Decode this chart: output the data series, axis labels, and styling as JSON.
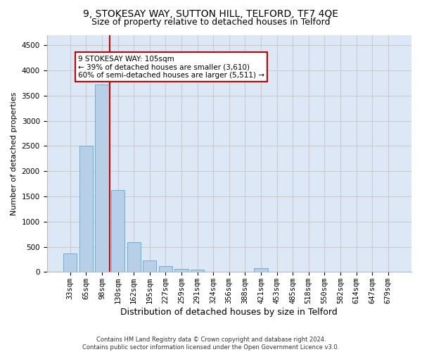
{
  "title1": "9, STOKESAY WAY, SUTTON HILL, TELFORD, TF7 4QE",
  "title2": "Size of property relative to detached houses in Telford",
  "xlabel": "Distribution of detached houses by size in Telford",
  "ylabel": "Number of detached properties",
  "footnote": "Contains HM Land Registry data © Crown copyright and database right 2024.\nContains public sector information licensed under the Open Government Licence v3.0.",
  "categories": [
    "33sqm",
    "65sqm",
    "98sqm",
    "130sqm",
    "162sqm",
    "195sqm",
    "227sqm",
    "259sqm",
    "291sqm",
    "324sqm",
    "356sqm",
    "388sqm",
    "421sqm",
    "453sqm",
    "485sqm",
    "518sqm",
    "550sqm",
    "582sqm",
    "614sqm",
    "647sqm",
    "679sqm"
  ],
  "values": [
    370,
    2500,
    3720,
    1630,
    590,
    225,
    110,
    65,
    45,
    0,
    0,
    0,
    80,
    0,
    0,
    0,
    0,
    0,
    0,
    0,
    0
  ],
  "bar_color": "#b8cfe8",
  "bar_edge_color": "#6baed6",
  "vline_x": 2.5,
  "vline_color": "#cc0000",
  "annotation_text": "9 STOKESAY WAY: 105sqm\n← 39% of detached houses are smaller (3,610)\n60% of semi-detached houses are larger (5,511) →",
  "annotation_box_color": "#cc0000",
  "annotation_box_fill": "#ffffff",
  "ylim": [
    0,
    4700
  ],
  "yticks": [
    0,
    500,
    1000,
    1500,
    2000,
    2500,
    3000,
    3500,
    4000,
    4500
  ],
  "grid_color": "#cccccc",
  "bg_color": "#dce8f5",
  "title1_fontsize": 10,
  "title2_fontsize": 9,
  "xlabel_fontsize": 9,
  "ylabel_fontsize": 8,
  "tick_fontsize": 7.5
}
